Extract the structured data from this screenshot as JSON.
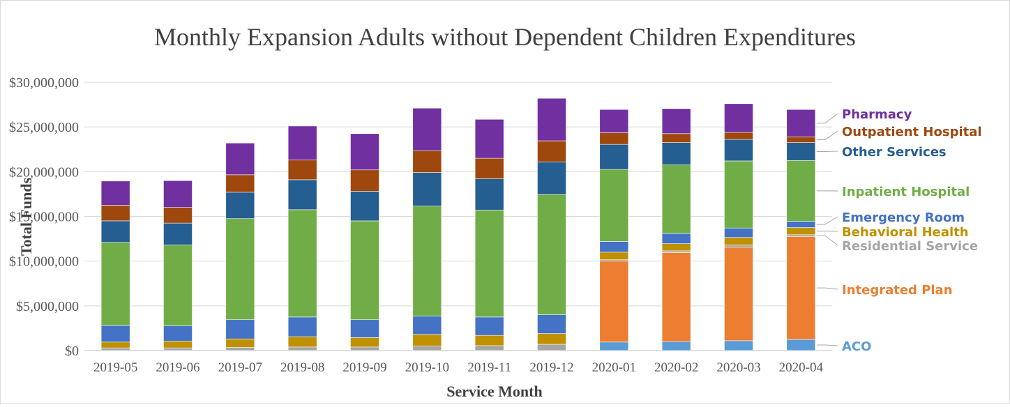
{
  "chart_data": {
    "type": "bar",
    "stacked": true,
    "title": "Monthly Expansion Adults without Dependent Children Expenditures",
    "xlabel": "Service Month",
    "ylabel": "Total Funds",
    "ylim": [
      0,
      30000000
    ],
    "yticks": [
      0,
      5000000,
      10000000,
      15000000,
      20000000,
      25000000,
      30000000
    ],
    "ytick_labels": [
      "$0",
      "$5,000,000",
      "$10,000,000",
      "$15,000,000",
      "$20,000,000",
      "$25,000,000",
      "$30,000,000"
    ],
    "grid": true,
    "legend_placement": "right",
    "categories": [
      "2019-05",
      "2019-06",
      "2019-07",
      "2019-08",
      "2019-09",
      "2019-10",
      "2019-11",
      "2019-12",
      "2020-01",
      "2020-02",
      "2020-03",
      "2020-04"
    ],
    "series": [
      {
        "name": "ACO",
        "color": "#5b9bd5",
        "values": [
          0,
          0,
          0,
          0,
          0,
          0,
          0,
          0,
          950000,
          1000000,
          1100000,
          1250000
        ]
      },
      {
        "name": "Integrated Plan",
        "color": "#ed7d31",
        "values": [
          0,
          0,
          0,
          0,
          0,
          0,
          0,
          0,
          9050000,
          9950000,
          10450000,
          11500000
        ]
      },
      {
        "name": "Residential Service",
        "color": "#a5a5a5",
        "values": [
          300000,
          300000,
          350000,
          400000,
          400000,
          500000,
          550000,
          700000,
          150000,
          200000,
          250000,
          200000
        ]
      },
      {
        "name": "Behavioral Health",
        "color": "#bf9000",
        "values": [
          650000,
          750000,
          950000,
          1150000,
          1050000,
          1300000,
          1150000,
          1200000,
          850000,
          800000,
          850000,
          800000
        ]
      },
      {
        "name": "Emergency Room",
        "color": "#4472c4",
        "values": [
          1850000,
          1700000,
          2150000,
          2200000,
          2000000,
          2050000,
          2050000,
          2100000,
          1200000,
          1150000,
          1050000,
          700000
        ]
      },
      {
        "name": "Inpatient Hospital",
        "color": "#70ad47",
        "values": [
          9300000,
          9050000,
          11300000,
          12000000,
          11050000,
          12300000,
          11950000,
          13450000,
          8050000,
          7650000,
          7500000,
          6800000
        ]
      },
      {
        "name": "Other Services",
        "color": "#255e91",
        "values": [
          2400000,
          2450000,
          2950000,
          3350000,
          3300000,
          3750000,
          3500000,
          3650000,
          2800000,
          2500000,
          2400000,
          2000000
        ]
      },
      {
        "name": "Outpatient Hospital",
        "color": "#9e480e",
        "values": [
          1750000,
          1750000,
          1950000,
          2200000,
          2400000,
          2450000,
          2300000,
          2350000,
          1300000,
          1000000,
          800000,
          650000
        ]
      },
      {
        "name": "Pharmacy",
        "color": "#7030a0",
        "values": [
          2700000,
          3000000,
          3550000,
          3800000,
          4050000,
          4750000,
          4350000,
          4750000,
          2600000,
          2800000,
          3200000,
          3050000
        ]
      }
    ],
    "legend": [
      {
        "name": "Pharmacy",
        "color": "#7030a0"
      },
      {
        "name": "Outpatient Hospital",
        "color": "#9e480e"
      },
      {
        "name": "Other Services",
        "color": "#255e91"
      },
      {
        "name": "Inpatient Hospital",
        "color": "#70ad47"
      },
      {
        "name": "Emergency Room",
        "color": "#4472c4"
      },
      {
        "name": "Behavioral Health",
        "color": "#bf9000"
      },
      {
        "name": "Residential Service",
        "color": "#a5a5a5"
      },
      {
        "name": "Integrated Plan",
        "color": "#ed7d31"
      },
      {
        "name": "ACO",
        "color": "#5b9bd5"
      }
    ]
  }
}
